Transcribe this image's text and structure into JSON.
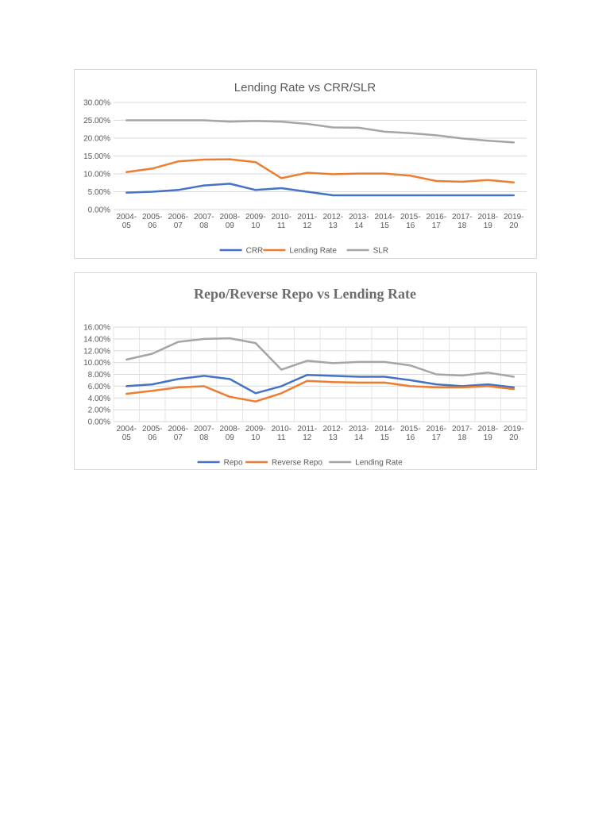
{
  "chart_data": [
    {
      "type": "line",
      "title": "Lending Rate vs CRR/SLR",
      "categories": [
        "2004-05",
        "2005-06",
        "2006-07",
        "2007-08",
        "2008-09",
        "2009-10",
        "2010-11",
        "2011-12",
        "2012-13",
        "2013-14",
        "2014-15",
        "2015-16",
        "2016-17",
        "2017-18",
        "2018-19",
        "2019-20"
      ],
      "series": [
        {
          "name": "CRR",
          "color": "#4472c4",
          "values": [
            4.75,
            5.0,
            5.5,
            6.75,
            7.25,
            5.5,
            6.0,
            5.0,
            4.0,
            4.0,
            4.0,
            4.0,
            4.0,
            4.0,
            4.0,
            4.0
          ]
        },
        {
          "name": "Lending Rate",
          "color": "#ed7d31",
          "values": [
            10.5,
            11.5,
            13.5,
            14.0,
            14.1,
            13.3,
            8.8,
            10.3,
            9.9,
            10.1,
            10.1,
            9.5,
            8.0,
            7.8,
            8.3,
            7.6
          ]
        },
        {
          "name": "SLR",
          "color": "#a5a5a5",
          "values": [
            25,
            25,
            25,
            25,
            24.6,
            24.8,
            24.6,
            24.0,
            23.0,
            22.9,
            21.8,
            21.4,
            20.8,
            19.9,
            19.3,
            18.8
          ]
        }
      ],
      "ylim": [
        0,
        30
      ],
      "yticks": [
        {
          "value": 0,
          "label": "0.00%"
        },
        {
          "value": 5,
          "label": "5.00%"
        },
        {
          "value": 10,
          "label": "10.00%"
        },
        {
          "value": 15,
          "label": "15.00%"
        },
        {
          "value": 20,
          "label": "20.00%"
        },
        {
          "value": 25,
          "label": "25.00%"
        },
        {
          "value": 30,
          "label": "30.00%"
        }
      ],
      "grid": true,
      "x_grid": false,
      "legend": "bottom"
    },
    {
      "type": "line",
      "title": "Repo/Reverse Repo vs Lending Rate",
      "categories": [
        "2004-05",
        "2005-06",
        "2006-07",
        "2007-08",
        "2008-09",
        "2009-10",
        "2010-11",
        "2011-12",
        "2012-13",
        "2013-14",
        "2014-15",
        "2015-16",
        "2016-17",
        "2017-18",
        "2018-19",
        "2019-20"
      ],
      "series": [
        {
          "name": "Repo",
          "color": "#4472c4",
          "values": [
            6.0,
            6.3,
            7.2,
            7.75,
            7.2,
            4.8,
            6.0,
            7.9,
            7.75,
            7.6,
            7.6,
            7.0,
            6.3,
            6.0,
            6.3,
            5.8
          ]
        },
        {
          "name": "Reverse Repo",
          "color": "#ed7d31",
          "values": [
            4.7,
            5.2,
            5.8,
            6.0,
            4.2,
            3.4,
            4.8,
            6.9,
            6.7,
            6.6,
            6.6,
            6.0,
            5.8,
            5.8,
            6.0,
            5.5
          ]
        },
        {
          "name": "Lending Rate",
          "color": "#a5a5a5",
          "values": [
            10.5,
            11.5,
            13.5,
            14.0,
            14.1,
            13.3,
            8.8,
            10.3,
            9.9,
            10.1,
            10.1,
            9.5,
            8.0,
            7.8,
            8.3,
            7.6
          ]
        }
      ],
      "ylim": [
        0,
        16
      ],
      "yticks": [
        {
          "value": 0,
          "label": "0.00%"
        },
        {
          "value": 2,
          "label": "2.00%"
        },
        {
          "value": 4,
          "label": "4.00%"
        },
        {
          "value": 6,
          "label": "6.00%"
        },
        {
          "value": 8,
          "label": "8.00%"
        },
        {
          "value": 10,
          "label": "10.00%"
        },
        {
          "value": 12,
          "label": "12.00%"
        },
        {
          "value": 14,
          "label": "14.00%"
        },
        {
          "value": 16,
          "label": "16.00%"
        }
      ],
      "grid": true,
      "x_grid": true,
      "legend": "bottom"
    }
  ]
}
